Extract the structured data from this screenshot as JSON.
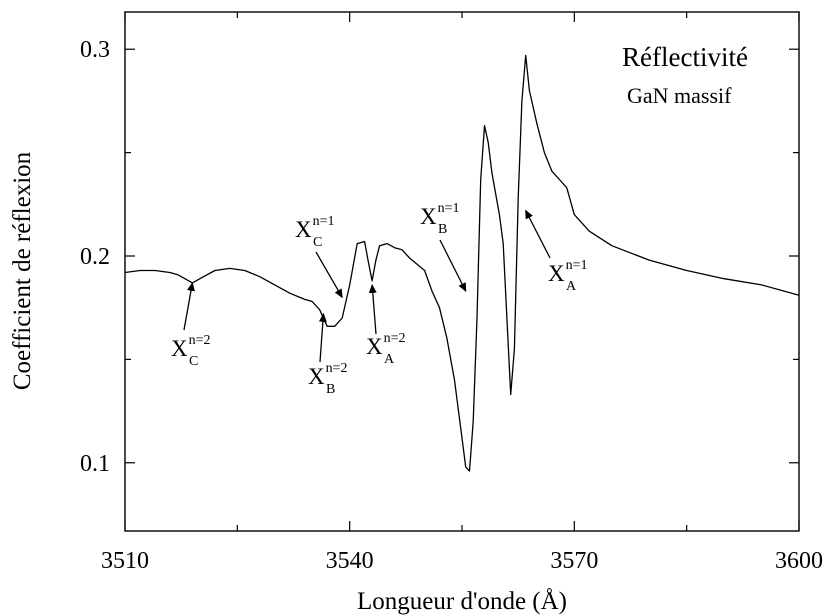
{
  "chart_data": {
    "type": "line",
    "title": "Réflectivité",
    "subtitle": "GaN massif",
    "xlabel": "Longueur d'onde (Å)",
    "ylabel": "Coefficient de réflexion",
    "xlim": [
      3510,
      3600
    ],
    "ylim": [
      0.067,
      0.318
    ],
    "x_ticks": [
      "3510",
      "3540",
      "3570",
      "3600"
    ],
    "y_ticks": [
      "0.1",
      "0.2",
      "0.3"
    ],
    "grid": false,
    "legend": "none",
    "line_color": "#000000",
    "series": [
      {
        "x": [
          3510,
          3512,
          3514,
          3516,
          3517,
          3518,
          3519,
          3520,
          3522,
          3524,
          3526,
          3528,
          3530,
          3532,
          3534,
          3535,
          3536,
          3537,
          3538,
          3539,
          3540,
          3541,
          3542,
          3542.5,
          3543,
          3543.5,
          3544,
          3545,
          3546,
          3547,
          3548,
          3549,
          3550,
          3551,
          3552,
          3553,
          3554,
          3555,
          3555.5,
          3556,
          3556.5,
          3557,
          3557.5,
          3558,
          3558.5,
          3559,
          3559.5,
          3560,
          3560.5,
          3561,
          3561.5,
          3562,
          3562.5,
          3563,
          3563.5,
          3564,
          3565,
          3566,
          3567,
          3568,
          3569,
          3570,
          3572,
          3575,
          3580,
          3585,
          3590,
          3595,
          3600
        ],
        "y": [
          0.192,
          0.193,
          0.193,
          0.192,
          0.191,
          0.189,
          0.187,
          0.189,
          0.193,
          0.194,
          0.193,
          0.19,
          0.186,
          0.182,
          0.179,
          0.178,
          0.174,
          0.166,
          0.166,
          0.17,
          0.186,
          0.206,
          0.207,
          0.197,
          0.188,
          0.198,
          0.205,
          0.206,
          0.204,
          0.203,
          0.199,
          0.196,
          0.193,
          0.183,
          0.175,
          0.16,
          0.14,
          0.112,
          0.098,
          0.096,
          0.12,
          0.17,
          0.237,
          0.263,
          0.255,
          0.24,
          0.23,
          0.22,
          0.206,
          0.17,
          0.133,
          0.155,
          0.228,
          0.275,
          0.297,
          0.28,
          0.264,
          0.25,
          0.241,
          0.237,
          0.233,
          0.22,
          0.212,
          0.205,
          0.198,
          0.193,
          0.189,
          0.186,
          0.181
        ]
      }
    ],
    "annotations": [
      {
        "name": "xc-n2",
        "main": "X",
        "sup": "n=2",
        "sub": "C",
        "point_x": 3519,
        "point_y": 0.187
      },
      {
        "name": "xb-n2",
        "main": "X",
        "sup": "n=2",
        "sub": "B",
        "point_x": 3536.5,
        "point_y": 0.172
      },
      {
        "name": "xc-n1",
        "main": "X",
        "sup": "n=1",
        "sub": "C",
        "point_x": 3539,
        "point_y": 0.18
      },
      {
        "name": "xa-n2",
        "main": "X",
        "sup": "n=2",
        "sub": "A",
        "point_x": 3543,
        "point_y": 0.186
      },
      {
        "name": "xb-n1",
        "main": "X",
        "sup": "n=1",
        "sub": "B",
        "point_x": 3555.5,
        "point_y": 0.183
      },
      {
        "name": "xa-n1",
        "main": "X",
        "sup": "n=1",
        "sub": "A",
        "point_x": 3563.5,
        "point_y": 0.222
      }
    ]
  }
}
